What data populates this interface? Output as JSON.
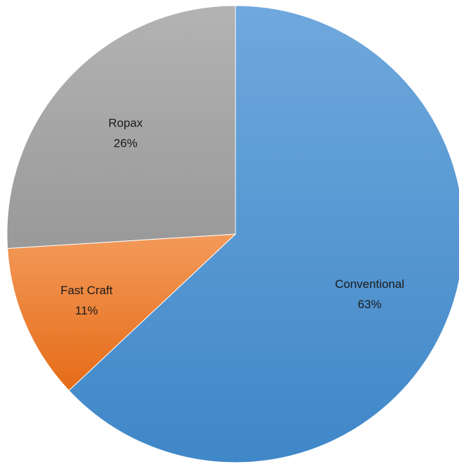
{
  "chart_data": {
    "type": "pie",
    "title": "",
    "labels": [
      "Conventional",
      "Fast Craft",
      "Ropax"
    ],
    "values": [
      63,
      11,
      26
    ],
    "unit": "%",
    "data_labels": [
      "63%",
      "11%",
      "26%"
    ],
    "colors": [
      "#5B9BD5",
      "#ED7D31",
      "#A5A5A5"
    ],
    "start_angle_deg": 0,
    "direction": "clockwise",
    "legend": "none"
  }
}
